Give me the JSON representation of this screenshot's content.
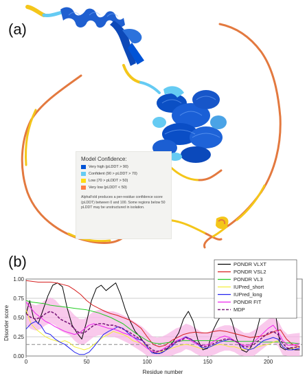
{
  "panels": {
    "a": "(a)",
    "b": "(b)"
  },
  "model_legend": {
    "title": "Model Confidence:",
    "items": [
      {
        "label": "Very high (pLDDT > 90)",
        "color": "#0053d6"
      },
      {
        "label": "Confident (90 > pLDDT > 70)",
        "color": "#65cbf3"
      },
      {
        "label": "Low (70 > pLDDT > 50)",
        "color": "#ffdb13"
      },
      {
        "label": "Very low (pLDDT < 50)",
        "color": "#ff7d45"
      }
    ],
    "note": "AlphaFold produces a per-residue confidence score (pLDDT) between 0 and 100. Some regions below 50 pLDDT may be unstructured in isolation."
  },
  "chart_data": {
    "type": "line",
    "xlabel": "Residue number",
    "ylabel": "Disorder score",
    "xlim": [
      0,
      228
    ],
    "ylim": [
      0,
      1.0
    ],
    "xticks": [
      "0",
      "50",
      "100",
      "150",
      "200"
    ],
    "xtick_values": [
      0,
      50,
      100,
      150,
      200
    ],
    "yticks": [
      "0.00",
      "0.25",
      "0.50",
      "0.75",
      "1.00"
    ],
    "ytick_values": [
      0,
      0.25,
      0.5,
      0.75,
      1.0
    ],
    "grid": "horizontal",
    "threshold": 0.15,
    "legend_position": "top-right",
    "band_color": "#f7b7e6",
    "series": [
      {
        "name": "PONDR VLXT",
        "color": "#000000",
        "dash": "solid",
        "x": [
          0,
          3,
          6,
          10,
          14,
          18,
          22,
          26,
          30,
          34,
          38,
          42,
          46,
          50,
          54,
          58,
          62,
          66,
          70,
          74,
          78,
          82,
          86,
          90,
          94,
          98,
          102,
          106,
          110,
          114,
          118,
          122,
          126,
          130,
          134,
          138,
          142,
          146,
          150,
          154,
          158,
          162,
          166,
          170,
          174,
          178,
          182,
          186,
          190,
          194,
          198,
          202,
          206,
          210,
          214,
          218,
          222,
          226
        ],
        "values": [
          0.55,
          0.72,
          0.5,
          0.42,
          0.6,
          0.78,
          0.92,
          0.95,
          0.9,
          0.62,
          0.4,
          0.3,
          0.22,
          0.45,
          0.72,
          0.88,
          0.92,
          0.85,
          0.9,
          0.95,
          0.8,
          0.6,
          0.45,
          0.32,
          0.25,
          0.16,
          0.08,
          0.04,
          0.03,
          0.06,
          0.12,
          0.2,
          0.3,
          0.48,
          0.58,
          0.45,
          0.2,
          0.08,
          0.1,
          0.32,
          0.45,
          0.55,
          0.58,
          0.45,
          0.22,
          0.08,
          0.05,
          0.12,
          0.3,
          0.55,
          0.8,
          0.86,
          0.55,
          0.12,
          0.08,
          0.1,
          0.08,
          0.08
        ]
      },
      {
        "name": "PONDR VSL2",
        "color": "#d61f1f",
        "dash": "solid",
        "x": [
          0,
          5,
          10,
          15,
          20,
          25,
          30,
          35,
          40,
          45,
          50,
          55,
          60,
          65,
          70,
          75,
          80,
          85,
          90,
          95,
          100,
          105,
          110,
          115,
          120,
          125,
          130,
          135,
          140,
          145,
          150,
          155,
          160,
          165,
          170,
          175,
          180,
          185,
          190,
          195,
          200,
          205,
          210,
          215,
          220,
          226
        ],
        "values": [
          0.98,
          0.97,
          0.96,
          0.96,
          0.96,
          0.95,
          0.93,
          0.91,
          0.86,
          0.8,
          0.72,
          0.66,
          0.62,
          0.58,
          0.55,
          0.53,
          0.5,
          0.47,
          0.42,
          0.36,
          0.25,
          0.15,
          0.12,
          0.14,
          0.2,
          0.24,
          0.28,
          0.3,
          0.31,
          0.3,
          0.3,
          0.32,
          0.33,
          0.32,
          0.3,
          0.28,
          0.26,
          0.24,
          0.25,
          0.26,
          0.28,
          0.32,
          0.34,
          0.22,
          0.15,
          0.12
        ]
      },
      {
        "name": "PONDR VL3",
        "color": "#22cc22",
        "dash": "solid",
        "x": [
          0,
          5,
          10,
          15,
          20,
          25,
          30,
          35,
          40,
          45,
          50,
          55,
          60,
          65,
          70,
          75,
          80,
          85,
          90,
          95,
          100,
          105,
          110,
          115,
          120,
          125,
          130,
          135,
          140,
          145,
          150,
          155,
          160,
          165,
          170,
          175,
          180,
          185,
          190,
          195,
          200,
          205,
          210,
          215,
          220,
          226
        ],
        "values": [
          0.72,
          0.7,
          0.69,
          0.68,
          0.66,
          0.65,
          0.64,
          0.63,
          0.62,
          0.61,
          0.6,
          0.58,
          0.56,
          0.53,
          0.5,
          0.46,
          0.42,
          0.36,
          0.3,
          0.25,
          0.2,
          0.17,
          0.16,
          0.17,
          0.18,
          0.19,
          0.2,
          0.2,
          0.2,
          0.2,
          0.2,
          0.2,
          0.2,
          0.19,
          0.19,
          0.19,
          0.19,
          0.19,
          0.19,
          0.18,
          0.18,
          0.18,
          0.18,
          0.17,
          0.17,
          0.16
        ]
      },
      {
        "name": "IUPred_short",
        "color": "#f2ee3a",
        "dash": "solid",
        "x": [
          0,
          4,
          8,
          12,
          16,
          20,
          24,
          28,
          32,
          36,
          40,
          44,
          48,
          52,
          56,
          60,
          64,
          68,
          72,
          76,
          80,
          84,
          88,
          92,
          96,
          100,
          104,
          108,
          112,
          116,
          120,
          124,
          128,
          132,
          136,
          140,
          144,
          148,
          152,
          156,
          160,
          164,
          168,
          172,
          176,
          180,
          184,
          188,
          192,
          196,
          200,
          204,
          208,
          212,
          216,
          220,
          226
        ],
        "values": [
          0.6,
          0.42,
          0.35,
          0.3,
          0.25,
          0.22,
          0.2,
          0.18,
          0.2,
          0.17,
          0.12,
          0.1,
          0.08,
          0.1,
          0.15,
          0.2,
          0.25,
          0.28,
          0.32,
          0.3,
          0.28,
          0.25,
          0.2,
          0.18,
          0.16,
          0.12,
          0.06,
          0.05,
          0.06,
          0.08,
          0.1,
          0.12,
          0.14,
          0.15,
          0.14,
          0.12,
          0.1,
          0.1,
          0.12,
          0.14,
          0.15,
          0.14,
          0.12,
          0.12,
          0.1,
          0.08,
          0.09,
          0.1,
          0.12,
          0.14,
          0.15,
          0.18,
          0.2,
          0.12,
          0.08,
          0.1,
          0.12
        ]
      },
      {
        "name": "IUPred_long",
        "color": "#2222ee",
        "dash": "solid",
        "x": [
          0,
          4,
          8,
          12,
          16,
          20,
          24,
          28,
          32,
          36,
          40,
          44,
          48,
          52,
          56,
          60,
          64,
          68,
          72,
          76,
          80,
          84,
          88,
          92,
          96,
          100,
          104,
          108,
          112,
          116,
          120,
          124,
          128,
          132,
          136,
          140,
          144,
          148,
          152,
          156,
          160,
          164,
          168,
          172,
          176,
          180,
          184,
          188,
          192,
          196,
          200,
          204,
          208,
          212,
          216,
          220,
          226
        ],
        "values": [
          0.35,
          0.42,
          0.45,
          0.4,
          0.3,
          0.28,
          0.22,
          0.18,
          0.15,
          0.1,
          0.05,
          0.02,
          0.02,
          0.05,
          0.12,
          0.2,
          0.28,
          0.32,
          0.35,
          0.38,
          0.36,
          0.3,
          0.25,
          0.22,
          0.2,
          0.12,
          0.04,
          0.03,
          0.04,
          0.08,
          0.12,
          0.18,
          0.22,
          0.25,
          0.22,
          0.18,
          0.12,
          0.1,
          0.12,
          0.15,
          0.18,
          0.2,
          0.22,
          0.2,
          0.16,
          0.1,
          0.08,
          0.1,
          0.15,
          0.2,
          0.22,
          0.24,
          0.22,
          0.12,
          0.08,
          0.08,
          0.1
        ]
      },
      {
        "name": "PONDR FIT",
        "color": "#ee22ee",
        "dash": "solid",
        "x": [
          0,
          4,
          8,
          12,
          16,
          20,
          24,
          28,
          32,
          36,
          40,
          44,
          48,
          52,
          56,
          60,
          64,
          68,
          72,
          76,
          80,
          84,
          88,
          92,
          96,
          100,
          104,
          108,
          112,
          116,
          120,
          124,
          128,
          132,
          136,
          140,
          144,
          148,
          152,
          156,
          160,
          164,
          168,
          172,
          176,
          180,
          184,
          188,
          192,
          196,
          200,
          204,
          208,
          212,
          216,
          220,
          226
        ],
        "values": [
          0.7,
          0.62,
          0.55,
          0.5,
          0.45,
          0.42,
          0.38,
          0.35,
          0.32,
          0.3,
          0.28,
          0.3,
          0.35,
          0.4,
          0.42,
          0.4,
          0.38,
          0.36,
          0.35,
          0.33,
          0.3,
          0.28,
          0.25,
          0.2,
          0.15,
          0.1,
          0.06,
          0.05,
          0.08,
          0.12,
          0.15,
          0.2,
          0.22,
          0.24,
          0.2,
          0.16,
          0.14,
          0.14,
          0.16,
          0.2,
          0.24,
          0.26,
          0.24,
          0.2,
          0.16,
          0.14,
          0.14,
          0.18,
          0.24,
          0.3,
          0.36,
          0.4,
          0.32,
          0.2,
          0.14,
          0.14,
          0.16
        ]
      },
      {
        "name": "MDP",
        "color": "#7b1a7b",
        "dash": "dashed",
        "x": [
          0,
          4,
          8,
          12,
          16,
          20,
          24,
          28,
          32,
          36,
          40,
          44,
          48,
          52,
          56,
          60,
          64,
          68,
          72,
          76,
          80,
          84,
          88,
          92,
          96,
          100,
          104,
          108,
          112,
          116,
          120,
          124,
          128,
          132,
          136,
          140,
          144,
          148,
          152,
          156,
          160,
          164,
          168,
          172,
          176,
          180,
          184,
          188,
          192,
          196,
          200,
          204,
          208,
          212,
          216,
          220,
          226
        ],
        "values": [
          0.55,
          0.5,
          0.48,
          0.5,
          0.55,
          0.58,
          0.55,
          0.48,
          0.45,
          0.42,
          0.35,
          0.3,
          0.3,
          0.35,
          0.4,
          0.42,
          0.42,
          0.4,
          0.4,
          0.38,
          0.35,
          0.32,
          0.28,
          0.24,
          0.2,
          0.14,
          0.08,
          0.06,
          0.07,
          0.1,
          0.14,
          0.18,
          0.2,
          0.24,
          0.22,
          0.18,
          0.14,
          0.12,
          0.14,
          0.17,
          0.2,
          0.22,
          0.22,
          0.2,
          0.16,
          0.12,
          0.12,
          0.15,
          0.2,
          0.25,
          0.3,
          0.32,
          0.28,
          0.16,
          0.1,
          0.11,
          0.12
        ]
      }
    ]
  }
}
